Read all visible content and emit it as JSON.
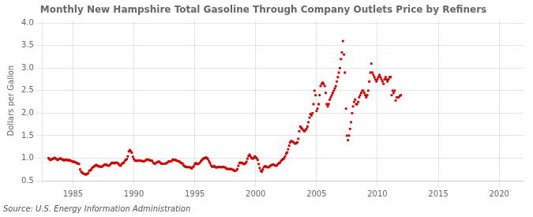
{
  "chart_data": {
    "type": "scatter",
    "title": "Monthly New Hampshire Total Gasoline Through Company Outlets Price by Refiners",
    "ylabel": "Dollars per Gallon",
    "source": "Source: U.S. Energy Information Administration",
    "color": "#cc0000",
    "marker": "square",
    "grid": true,
    "xlim": [
      1982.5,
      2022
    ],
    "ylim": [
      0.5,
      4.05
    ],
    "xticks": [
      1985,
      1990,
      1995,
      2000,
      2005,
      2010,
      2015,
      2020
    ],
    "yticks": [
      0.5,
      {
        "value": 1.0,
        "label": "1.0"
      },
      1.5,
      {
        "value": 2.0,
        "label": "2.0"
      },
      2.5,
      {
        "value": 3.0,
        "label": "3.0"
      },
      3.5,
      {
        "value": 4.0,
        "label": "4.0"
      }
    ],
    "x": [
      1983.0,
      1983.08,
      1983.17,
      1983.25,
      1983.33,
      1983.42,
      1983.5,
      1983.58,
      1983.67,
      1983.75,
      1983.83,
      1983.92,
      1984.0,
      1984.08,
      1984.17,
      1984.25,
      1984.33,
      1984.42,
      1984.5,
      1984.58,
      1984.67,
      1984.75,
      1984.83,
      1984.92,
      1985.0,
      1985.08,
      1985.17,
      1985.25,
      1985.33,
      1985.42,
      1985.5,
      1985.58,
      1985.67,
      1985.75,
      1985.83,
      1985.92,
      1986.0,
      1986.08,
      1986.17,
      1986.25,
      1986.33,
      1986.42,
      1986.5,
      1986.58,
      1986.67,
      1986.75,
      1986.83,
      1986.92,
      1987.0,
      1987.08,
      1987.17,
      1987.25,
      1987.33,
      1987.42,
      1987.5,
      1987.58,
      1987.67,
      1987.75,
      1987.83,
      1987.92,
      1988.0,
      1988.08,
      1988.17,
      1988.25,
      1988.33,
      1988.42,
      1988.5,
      1988.58,
      1988.67,
      1988.75,
      1988.83,
      1988.92,
      1989.0,
      1989.08,
      1989.17,
      1989.25,
      1989.33,
      1989.42,
      1989.5,
      1989.58,
      1989.67,
      1989.75,
      1989.83,
      1989.92,
      1990.0,
      1990.08,
      1990.17,
      1990.25,
      1990.33,
      1990.42,
      1990.5,
      1990.58,
      1990.67,
      1990.75,
      1990.83,
      1990.92,
      1991.0,
      1991.08,
      1991.17,
      1991.25,
      1991.33,
      1991.42,
      1991.5,
      1991.58,
      1991.67,
      1991.75,
      1991.83,
      1991.92,
      1992.0,
      1992.08,
      1992.17,
      1992.25,
      1992.33,
      1992.42,
      1992.5,
      1992.58,
      1992.67,
      1992.75,
      1992.83,
      1992.92,
      1993.0,
      1993.08,
      1993.17,
      1993.25,
      1993.33,
      1993.42,
      1993.5,
      1993.58,
      1993.67,
      1993.75,
      1993.83,
      1993.92,
      1994.0,
      1994.08,
      1994.17,
      1994.25,
      1994.33,
      1994.42,
      1994.5,
      1994.58,
      1994.67,
      1994.75,
      1994.83,
      1994.92,
      1995.0,
      1995.08,
      1995.17,
      1995.25,
      1995.33,
      1995.42,
      1995.5,
      1995.58,
      1995.67,
      1995.75,
      1995.83,
      1995.92,
      1996.0,
      1996.08,
      1996.17,
      1996.25,
      1996.33,
      1996.42,
      1996.5,
      1996.58,
      1996.67,
      1996.75,
      1996.83,
      1996.92,
      1997.0,
      1997.08,
      1997.17,
      1997.25,
      1997.33,
      1997.42,
      1997.5,
      1997.58,
      1997.67,
      1997.75,
      1997.83,
      1997.92,
      1998.0,
      1998.08,
      1998.17,
      1998.25,
      1998.33,
      1998.42,
      1998.5,
      1998.58,
      1998.67,
      1998.75,
      1998.83,
      1998.92,
      1999.0,
      1999.08,
      1999.17,
      1999.25,
      1999.33,
      1999.42,
      1999.5,
      1999.58,
      1999.67,
      1999.75,
      1999.83,
      1999.92,
      2000.0,
      2000.08,
      2000.17,
      2000.25,
      2000.33,
      2000.42,
      2000.5,
      2000.58,
      2000.67,
      2000.75,
      2000.83,
      2000.92,
      2001.0,
      2001.08,
      2001.17,
      2001.25,
      2001.33,
      2001.42,
      2001.5,
      2001.58,
      2001.67,
      2001.75,
      2001.83,
      2001.92,
      2002.0,
      2002.08,
      2002.17,
      2002.25,
      2002.33,
      2002.42,
      2002.5,
      2002.58,
      2002.67,
      2002.75,
      2002.83,
      2002.92,
      2003.0,
      2003.08,
      2003.17,
      2003.25,
      2003.33,
      2003.42,
      2003.5,
      2003.58,
      2003.67,
      2003.75,
      2003.83,
      2003.92,
      2004.0,
      2004.08,
      2004.17,
      2004.25,
      2004.33,
      2004.42,
      2004.5,
      2004.58,
      2004.67,
      2004.75,
      2004.83,
      2004.92,
      2005.0,
      2005.08,
      2005.17,
      2005.25,
      2005.33,
      2005.42,
      2005.5,
      2005.58,
      2005.67,
      2005.75,
      2005.83,
      2005.92,
      2006.0,
      2006.08,
      2006.17,
      2006.25,
      2006.33,
      2006.42,
      2006.5,
      2006.58,
      2006.67,
      2006.75,
      2006.83,
      2006.92,
      2007.0,
      2007.08,
      2007.17,
      2007.25,
      2007.33,
      2007.42,
      2007.5,
      2007.58,
      2007.67,
      2007.75,
      2007.83,
      2007.92,
      2008.0,
      2008.08,
      2008.17,
      2008.25,
      2008.33,
      2008.42,
      2008.5,
      2008.58,
      2008.67,
      2008.75,
      2008.83,
      2008.92,
      2009.0,
      2009.08,
      2009.17,
      2009.25,
      2009.33,
      2009.42,
      2009.5,
      2009.58,
      2009.67,
      2009.75,
      2009.83,
      2009.92,
      2010.0,
      2010.08,
      2010.17,
      2010.25,
      2010.33,
      2010.42,
      2010.5,
      2010.58,
      2010.67,
      2010.75,
      2010.83,
      2010.92,
      2011.0,
      2011.08,
      2011.17,
      2011.25,
      2011.33,
      2011.42,
      2011.5,
      2011.58,
      2011.67,
      2011.75,
      2011.83,
      2011.92
    ],
    "values": [
      1.0,
      0.97,
      0.96,
      0.98,
      0.98,
      1.0,
      1.01,
      0.99,
      0.97,
      0.96,
      0.98,
      0.99,
      0.99,
      0.97,
      0.97,
      0.95,
      0.96,
      0.97,
      0.96,
      0.95,
      0.96,
      0.95,
      0.94,
      0.93,
      0.92,
      0.92,
      0.91,
      0.9,
      0.89,
      0.88,
      0.87,
      0.75,
      0.7,
      0.68,
      0.66,
      0.65,
      0.64,
      0.64,
      0.65,
      0.67,
      0.72,
      0.73,
      0.75,
      0.79,
      0.8,
      0.82,
      0.84,
      0.85,
      0.83,
      0.82,
      0.82,
      0.81,
      0.81,
      0.82,
      0.84,
      0.85,
      0.86,
      0.85,
      0.84,
      0.83,
      0.84,
      0.87,
      0.89,
      0.9,
      0.89,
      0.89,
      0.9,
      0.9,
      0.89,
      0.87,
      0.84,
      0.83,
      0.87,
      0.89,
      0.9,
      0.94,
      0.96,
      0.98,
      1.04,
      1.15,
      1.18,
      1.15,
      1.12,
      1.03,
      0.98,
      0.95,
      0.94,
      0.94,
      0.95,
      0.95,
      0.95,
      0.94,
      0.94,
      0.93,
      0.93,
      0.94,
      0.96,
      0.97,
      0.97,
      0.96,
      0.95,
      0.95,
      0.94,
      0.9,
      0.88,
      0.88,
      0.9,
      0.91,
      0.92,
      0.92,
      0.9,
      0.88,
      0.88,
      0.88,
      0.88,
      0.88,
      0.89,
      0.9,
      0.92,
      0.93,
      0.93,
      0.93,
      0.96,
      0.97,
      0.96,
      0.96,
      0.95,
      0.94,
      0.93,
      0.92,
      0.9,
      0.89,
      0.88,
      0.84,
      0.82,
      0.81,
      0.8,
      0.8,
      0.8,
      0.8,
      0.79,
      0.77,
      0.8,
      0.82,
      0.87,
      0.89,
      0.87,
      0.87,
      0.88,
      0.9,
      0.93,
      0.96,
      0.98,
      1.0,
      1.0,
      1.02,
      1.0,
      0.98,
      0.93,
      0.89,
      0.84,
      0.81,
      0.81,
      0.83,
      0.81,
      0.79,
      0.8,
      0.8,
      0.81,
      0.8,
      0.8,
      0.8,
      0.81,
      0.8,
      0.79,
      0.77,
      0.76,
      0.76,
      0.76,
      0.76,
      0.76,
      0.75,
      0.74,
      0.72,
      0.72,
      0.73,
      0.76,
      0.83,
      0.89,
      0.9,
      0.9,
      0.89,
      0.87,
      0.87,
      0.89,
      0.92,
      0.99,
      1.05,
      1.08,
      1.04,
      1.0,
      0.99,
      1.0,
      1.04,
      1.02,
      1.0,
      0.96,
      0.87,
      0.78,
      0.72,
      0.7,
      0.75,
      0.8,
      0.82,
      0.82,
      0.8,
      0.8,
      0.8,
      0.82,
      0.84,
      0.85,
      0.86,
      0.85,
      0.84,
      0.83,
      0.84,
      0.87,
      0.89,
      0.9,
      0.94,
      0.96,
      0.98,
      1.0,
      1.04,
      1.1,
      1.13,
      1.2,
      1.28,
      1.35,
      1.38,
      1.37,
      1.36,
      1.34,
      1.32,
      1.33,
      1.35,
      1.43,
      1.6,
      1.7,
      1.67,
      1.65,
      1.62,
      1.6,
      1.62,
      1.65,
      1.7,
      1.8,
      1.9,
      1.98,
      1.95,
      2.0,
      2.2,
      2.5,
      2.4,
      2.05,
      2.1,
      2.2,
      2.4,
      2.6,
      2.65,
      2.68,
      2.65,
      2.6,
      2.45,
      2.2,
      2.15,
      2.2,
      2.3,
      2.35,
      2.4,
      2.45,
      2.5,
      2.55,
      2.6,
      2.7,
      2.8,
      2.9,
      3.0,
      3.2,
      3.35,
      3.6,
      3.3,
      2.9,
      2.1,
      1.5,
      1.4,
      1.5,
      1.65,
      1.8,
      2.0,
      2.15,
      2.25,
      2.3,
      2.2,
      2.2,
      2.25,
      2.35,
      2.4,
      2.45,
      2.5,
      2.5,
      2.45,
      2.4,
      2.35,
      2.4,
      2.5,
      2.7,
      2.9,
      3.1,
      2.9,
      2.85,
      2.8,
      2.75,
      2.7,
      2.75,
      2.8,
      2.85,
      2.8,
      2.75,
      2.7,
      2.65,
      2.75,
      2.8,
      2.75,
      2.7,
      2.75,
      2.8,
      2.8,
      2.4,
      2.5,
      2.45,
      2.5,
      2.28,
      2.35,
      2.35,
      2.35,
      2.38,
      2.4
    ]
  }
}
